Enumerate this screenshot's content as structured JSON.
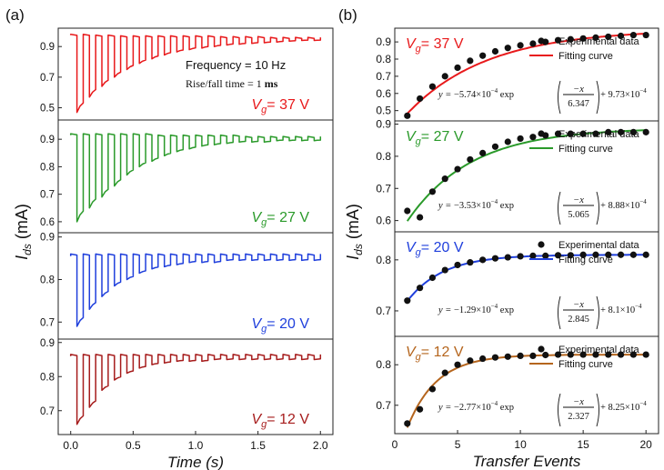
{
  "panel_labels": [
    "(a)",
    "(b)"
  ],
  "chart_data": [
    {
      "type": "line",
      "panel": "(a)",
      "xlabel": "Time (s)",
      "ylabel_main": "I",
      "ylabel_sub": "ds",
      "ylabel_unit": " (mA)",
      "xlim": [
        -0.1,
        2.1
      ],
      "xticks": [
        0.0,
        0.5,
        1.0,
        1.5,
        2.0
      ],
      "xtick_labels": [
        "0.0",
        "0.5",
        "1.0",
        "1.5",
        "2.0"
      ],
      "annotation_frequency": "Frequency = 10 Hz",
      "annotation_rise_prefix": "Rise/fall time = 1 ",
      "annotation_rise_unit": "ms",
      "series": [
        {
          "name": "37 V",
          "vg_value": "37",
          "vg_unit": " V",
          "color": "#e8191b",
          "ylim": [
            0.42,
            1.02
          ],
          "yticks": [
            0.5,
            0.7,
            0.9
          ],
          "ytick_labels": [
            "0.5",
            "0.7",
            "0.9"
          ],
          "high": [
            0.98,
            0.98,
            0.975,
            0.975,
            0.97,
            0.97,
            0.97,
            0.97,
            0.97,
            0.97,
            0.97,
            0.97,
            0.965,
            0.965,
            0.965,
            0.965,
            0.96,
            0.96,
            0.96,
            0.96
          ],
          "low": [
            0.47,
            0.57,
            0.64,
            0.7,
            0.75,
            0.79,
            0.82,
            0.845,
            0.865,
            0.88,
            0.89,
            0.9,
            0.91,
            0.915,
            0.92,
            0.925,
            0.93,
            0.935,
            0.94,
            0.94
          ]
        },
        {
          "name": "27 V",
          "vg_value": "27",
          "vg_unit": " V",
          "color": "#2a9a2a",
          "ylim": [
            0.56,
            0.97
          ],
          "yticks": [
            0.6,
            0.7,
            0.8,
            0.9
          ],
          "ytick_labels": [
            "0.6",
            "0.7",
            "0.8",
            "0.9"
          ],
          "high": [
            0.92,
            0.92,
            0.92,
            0.92,
            0.92,
            0.92,
            0.92,
            0.915,
            0.915,
            0.915,
            0.915,
            0.915,
            0.915,
            0.915,
            0.91,
            0.91,
            0.91,
            0.91,
            0.91,
            0.91
          ],
          "low": [
            0.6,
            0.65,
            0.69,
            0.73,
            0.77,
            0.8,
            0.82,
            0.84,
            0.855,
            0.865,
            0.875,
            0.88,
            0.885,
            0.89,
            0.89,
            0.89,
            0.895,
            0.895,
            0.895,
            0.895
          ]
        },
        {
          "name": "20 V",
          "vg_value": "20",
          "vg_unit": " V",
          "color": "#1f3fdc",
          "ylim": [
            0.66,
            0.91
          ],
          "yticks": [
            0.7,
            0.8,
            0.9
          ],
          "ytick_labels": [
            "0.7",
            "0.8",
            "0.9"
          ],
          "high": [
            0.86,
            0.86,
            0.86,
            0.86,
            0.86,
            0.86,
            0.86,
            0.86,
            0.86,
            0.86,
            0.86,
            0.86,
            0.86,
            0.86,
            0.86,
            0.86,
            0.86,
            0.86,
            0.86,
            0.86
          ],
          "low": [
            0.69,
            0.73,
            0.76,
            0.785,
            0.8,
            0.815,
            0.825,
            0.83,
            0.835,
            0.84,
            0.84,
            0.84,
            0.845,
            0.845,
            0.845,
            0.845,
            0.845,
            0.845,
            0.845,
            0.845
          ]
        },
        {
          "name": "12 V",
          "vg_value": "12",
          "vg_unit": " V",
          "color": "#a61c1c",
          "ylim": [
            0.63,
            0.91
          ],
          "yticks": [
            0.7,
            0.8,
            0.9
          ],
          "ytick_labels": [
            "0.7",
            "0.8",
            "0.9"
          ],
          "high": [
            0.865,
            0.865,
            0.865,
            0.865,
            0.865,
            0.865,
            0.865,
            0.865,
            0.865,
            0.865,
            0.865,
            0.865,
            0.865,
            0.865,
            0.865,
            0.865,
            0.865,
            0.865,
            0.865,
            0.865
          ],
          "low": [
            0.66,
            0.71,
            0.76,
            0.79,
            0.81,
            0.825,
            0.835,
            0.84,
            0.845,
            0.845,
            0.845,
            0.85,
            0.85,
            0.85,
            0.85,
            0.85,
            0.85,
            0.85,
            0.85,
            0.85
          ]
        }
      ]
    },
    {
      "type": "scatter",
      "panel": "(b)",
      "xlabel": "Transfer Events",
      "ylabel_main": "I",
      "ylabel_sub": "ds",
      "ylabel_unit": " (mA)",
      "xlim": [
        0,
        21
      ],
      "xticks": [
        0,
        5,
        10,
        15,
        20
      ],
      "xtick_labels": [
        "0",
        "5",
        "10",
        "15",
        "20"
      ],
      "x": [
        1,
        2,
        3,
        4,
        5,
        6,
        7,
        8,
        9,
        10,
        11,
        12,
        13,
        14,
        15,
        16,
        17,
        18,
        19,
        20
      ],
      "legend_data": "Experimental data",
      "legend_fit": "Fitting curve",
      "eq_lhs": "y = ",
      "eq_num": "−x",
      "eq_exp": "exp",
      "series": [
        {
          "name": "37 V",
          "vg_value": "37",
          "vg_unit": " V",
          "color": "#e8191b",
          "ylim": [
            0.44,
            0.98
          ],
          "yticks": [
            0.5,
            0.6,
            0.7,
            0.8,
            0.9
          ],
          "ytick_labels": [
            "0.5",
            "0.6",
            "0.7",
            "0.8",
            "0.9"
          ],
          "y": [
            0.47,
            0.57,
            0.64,
            0.7,
            0.75,
            0.79,
            0.82,
            0.845,
            0.865,
            0.88,
            0.89,
            0.9,
            0.91,
            0.915,
            0.92,
            0.925,
            0.93,
            0.935,
            0.94,
            0.94
          ],
          "fit": {
            "a": -0.574,
            "tau": 6.347,
            "c": 0.973
          },
          "eq_coef": "−5.74×10",
          "eq_coef_exp": "−4",
          "eq_tau": "6.347",
          "eq_const": " + 9.73×10",
          "eq_const_exp": "−4"
        },
        {
          "name": "27 V",
          "vg_value": "27",
          "vg_unit": " V",
          "color": "#2a9a2a",
          "ylim": [
            0.565,
            0.91
          ],
          "yticks": [
            0.6,
            0.7,
            0.8,
            0.9
          ],
          "ytick_labels": [
            "0.6",
            "0.7",
            "0.8",
            "0.9"
          ],
          "y": [
            0.63,
            0.61,
            0.69,
            0.73,
            0.76,
            0.79,
            0.81,
            0.83,
            0.845,
            0.855,
            0.86,
            0.865,
            0.87,
            0.87,
            0.87,
            0.87,
            0.875,
            0.875,
            0.875,
            0.875
          ],
          "fit": {
            "a": -0.353,
            "tau": 5.065,
            "c": 0.888
          },
          "eq_coef": "−3.53×10",
          "eq_coef_exp": "−4",
          "eq_tau": "5.065",
          "eq_const": " + 8.88×10",
          "eq_const_exp": "−4"
        },
        {
          "name": "20 V",
          "vg_value": "20",
          "vg_unit": " V",
          "color": "#1f3fdc",
          "ylim": [
            0.65,
            0.855
          ],
          "yticks": [
            0.7,
            0.8
          ],
          "ytick_labels": [
            "0.7",
            "0.8"
          ],
          "y": [
            0.72,
            0.745,
            0.765,
            0.78,
            0.79,
            0.795,
            0.8,
            0.803,
            0.805,
            0.807,
            0.808,
            0.808,
            0.809,
            0.809,
            0.81,
            0.81,
            0.81,
            0.81,
            0.81,
            0.81
          ],
          "fit": {
            "a": -0.129,
            "tau": 2.845,
            "c": 0.81
          },
          "eq_coef": "−1.29×10",
          "eq_coef_exp": "−4",
          "eq_tau": "2.845",
          "eq_const": " + 8.1×10",
          "eq_const_exp": "−4"
        },
        {
          "name": "12 V",
          "vg_value": "12",
          "vg_unit": " V",
          "color": "#b5651d",
          "ylim": [
            0.63,
            0.87
          ],
          "yticks": [
            0.7,
            0.8
          ],
          "ytick_labels": [
            "0.7",
            "0.8"
          ],
          "y": [
            0.655,
            0.69,
            0.74,
            0.78,
            0.8,
            0.81,
            0.815,
            0.818,
            0.82,
            0.822,
            0.822,
            0.824,
            0.825,
            0.825,
            0.825,
            0.825,
            0.825,
            0.825,
            0.825,
            0.825
          ],
          "fit": {
            "a": -0.277,
            "tau": 2.327,
            "c": 0.825
          },
          "eq_coef": "−2.77×10",
          "eq_coef_exp": "−4",
          "eq_tau": "2.327",
          "eq_const": " + 8.25×10",
          "eq_const_exp": "−4"
        }
      ]
    }
  ]
}
